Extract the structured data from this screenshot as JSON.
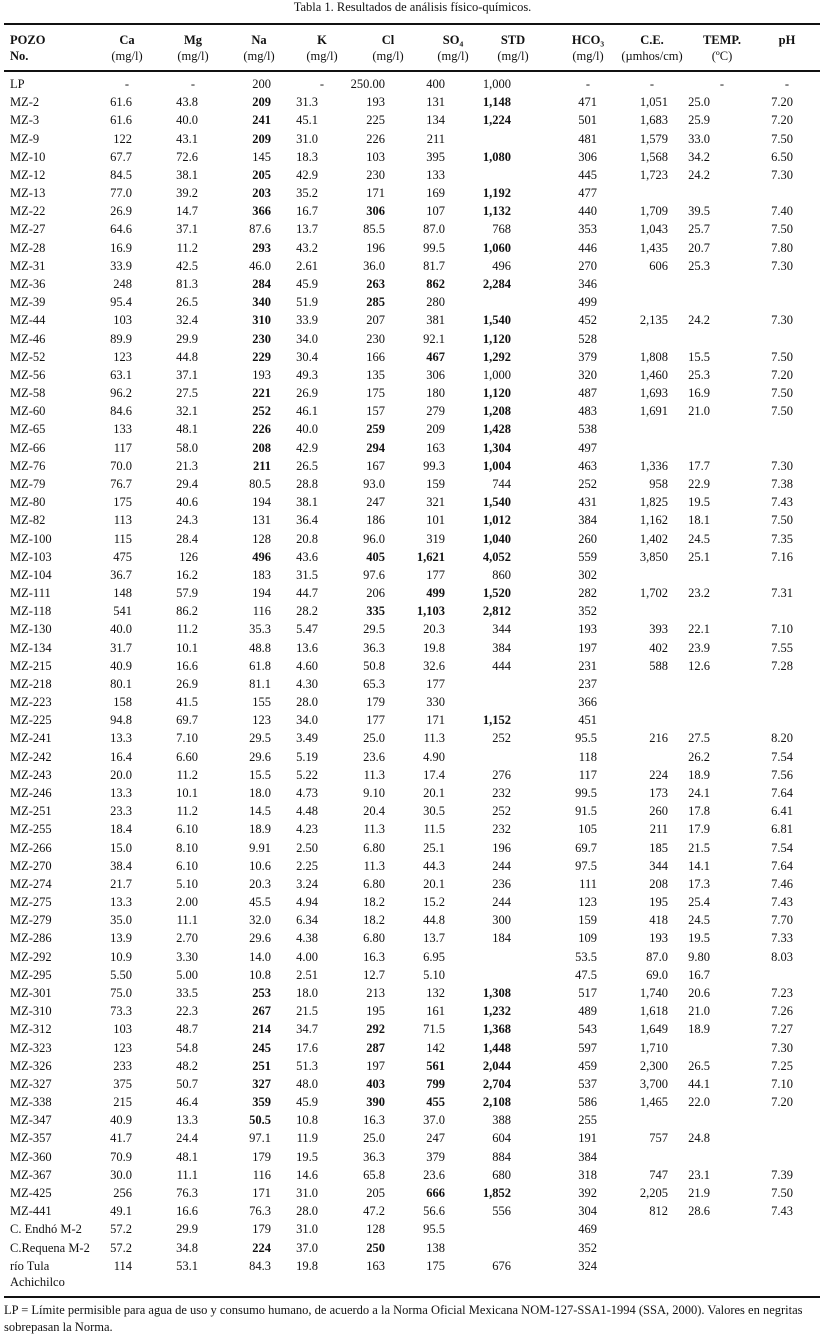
{
  "title": "Tabla 1. Resultados de análisis físico-químicos.",
  "header": {
    "pozo": [
      "POZO",
      "No."
    ],
    "columns": [
      {
        "key": "Ca",
        "label": "Ca",
        "unit": "(mg/l)"
      },
      {
        "key": "Mg",
        "label": "Mg",
        "unit": "(mg/l)"
      },
      {
        "key": "Na",
        "label": "Na",
        "unit": "(mg/l)"
      },
      {
        "key": "K",
        "label": "K",
        "unit": "(mg/l)"
      },
      {
        "key": "Cl",
        "label": "Cl",
        "unit": "(mg/l)"
      },
      {
        "key": "SO4",
        "label": "SO₄",
        "unit": "(mg/l)"
      },
      {
        "key": "STD",
        "label": "STD",
        "unit": "(mg/l)"
      },
      {
        "key": "HCO3",
        "label": "HCO₃",
        "unit": "(mg/l)"
      },
      {
        "key": "CE",
        "label": "C.E.",
        "unit": "(µmhos/cm)"
      },
      {
        "key": "TEMP",
        "label": "TEMP.",
        "unit": "(ºC)"
      },
      {
        "key": "pH",
        "label": "pH",
        "unit": ""
      }
    ]
  },
  "rows": [
    {
      "pozo": "LP",
      "values": [
        "-",
        "-",
        "200",
        "-",
        "250.00",
        "400",
        "1,000",
        "-",
        "-",
        "-",
        "-"
      ],
      "bold": []
    },
    {
      "pozo": "MZ-2",
      "values": [
        "61.6",
        "43.8",
        "209",
        "31.3",
        "193",
        "131",
        "1,148",
        "471",
        "1,051",
        "25.0",
        "7.20"
      ],
      "bold": [
        "Na",
        "STD"
      ]
    },
    {
      "pozo": "MZ-3",
      "values": [
        "61.6",
        "40.0",
        "241",
        "45.1",
        "225",
        "134",
        "1,224",
        "501",
        "1,683",
        "25.9",
        "7.20"
      ],
      "bold": [
        "Na",
        "STD"
      ]
    },
    {
      "pozo": "MZ-9",
      "values": [
        "122",
        "43.1",
        "209",
        "31.0",
        "226",
        "211",
        "",
        "481",
        "1,579",
        "33.0",
        "7.50"
      ],
      "bold": [
        "Na"
      ]
    },
    {
      "pozo": "MZ-10",
      "values": [
        "67.7",
        "72.6",
        "145",
        "18.3",
        "103",
        "395",
        "1,080",
        "306",
        "1,568",
        "34.2",
        "6.50"
      ],
      "bold": [
        "STD"
      ]
    },
    {
      "pozo": "MZ-12",
      "values": [
        "84.5",
        "38.1",
        "205",
        "42.9",
        "230",
        "133",
        "",
        "445",
        "1,723",
        "24.2",
        "7.30"
      ],
      "bold": [
        "Na"
      ]
    },
    {
      "pozo": "MZ-13",
      "values": [
        "77.0",
        "39.2",
        "203",
        "35.2",
        "171",
        "169",
        "1,192",
        "477",
        "",
        "",
        ""
      ],
      "bold": [
        "Na",
        "STD"
      ]
    },
    {
      "pozo": "MZ-22",
      "values": [
        "26.9",
        "14.7",
        "366",
        "16.7",
        "306",
        "107",
        "1,132",
        "440",
        "1,709",
        "39.5",
        "7.40"
      ],
      "bold": [
        "Na",
        "Cl",
        "STD"
      ]
    },
    {
      "pozo": "MZ-27",
      "values": [
        "64.6",
        "37.1",
        "87.6",
        "13.7",
        "85.5",
        "87.0",
        "768",
        "353",
        "1,043",
        "25.7",
        "7.50"
      ],
      "bold": []
    },
    {
      "pozo": "MZ-28",
      "values": [
        "16.9",
        "11.2",
        "293",
        "43.2",
        "196",
        "99.5",
        "1,060",
        "446",
        "1,435",
        "20.7",
        "7.80"
      ],
      "bold": [
        "Na",
        "STD"
      ]
    },
    {
      "pozo": "MZ-31",
      "values": [
        "33.9",
        "42.5",
        "46.0",
        "2.61",
        "36.0",
        "81.7",
        "496",
        "270",
        "606",
        "25.3",
        "7.30"
      ],
      "bold": []
    },
    {
      "pozo": "MZ-36",
      "values": [
        "248",
        "81.3",
        "284",
        "45.9",
        "263",
        "862",
        "2,284",
        "346",
        "",
        "",
        ""
      ],
      "bold": [
        "Na",
        "Cl",
        "SO4",
        "STD"
      ]
    },
    {
      "pozo": "MZ-39",
      "values": [
        "95.4",
        "26.5",
        "340",
        "51.9",
        "285",
        "280",
        "",
        "499",
        "",
        "",
        ""
      ],
      "bold": [
        "Na",
        "Cl"
      ]
    },
    {
      "pozo": "MZ-44",
      "values": [
        "103",
        "32.4",
        "310",
        "33.9",
        "207",
        "381",
        "1,540",
        "452",
        "2,135",
        "24.2",
        "7.30"
      ],
      "bold": [
        "Na",
        "STD"
      ]
    },
    {
      "pozo": "MZ-46",
      "values": [
        "89.9",
        "29.9",
        "230",
        "34.0",
        "230",
        "92.1",
        "1,120",
        "528",
        "",
        "",
        ""
      ],
      "bold": [
        "Na",
        "STD"
      ]
    },
    {
      "pozo": "MZ-52",
      "values": [
        "123",
        "44.8",
        "229",
        "30.4",
        "166",
        "467",
        "1,292",
        "379",
        "1,808",
        "15.5",
        "7.50"
      ],
      "bold": [
        "Na",
        "SO4",
        "STD"
      ]
    },
    {
      "pozo": "MZ-56",
      "values": [
        "63.1",
        "37.1",
        "193",
        "49.3",
        "135",
        "306",
        "1,000",
        "320",
        "1,460",
        "25.3",
        "7.20"
      ],
      "bold": []
    },
    {
      "pozo": "MZ-58",
      "values": [
        "96.2",
        "27.5",
        "221",
        "26.9",
        "175",
        "180",
        "1,120",
        "487",
        "1,693",
        "16.9",
        "7.50"
      ],
      "bold": [
        "Na",
        "STD"
      ]
    },
    {
      "pozo": "MZ-60",
      "values": [
        "84.6",
        "32.1",
        "252",
        "46.1",
        "157",
        "279",
        "1,208",
        "483",
        "1,691",
        "21.0",
        "7.50"
      ],
      "bold": [
        "Na",
        "STD"
      ]
    },
    {
      "pozo": "MZ-65",
      "values": [
        "133",
        "48.1",
        "226",
        "40.0",
        "259",
        "209",
        "1,428",
        "538",
        "",
        "",
        ""
      ],
      "bold": [
        "Na",
        "Cl",
        "STD"
      ]
    },
    {
      "pozo": "MZ-66",
      "values": [
        "117",
        "58.0",
        "208",
        "42.9",
        "294",
        "163",
        "1,304",
        "497",
        "",
        "",
        ""
      ],
      "bold": [
        "Na",
        "Cl",
        "STD"
      ]
    },
    {
      "pozo": "MZ-76",
      "values": [
        "70.0",
        "21.3",
        "211",
        "26.5",
        "167",
        "99.3",
        "1,004",
        "463",
        "1,336",
        "17.7",
        "7.30"
      ],
      "bold": [
        "Na",
        "STD"
      ]
    },
    {
      "pozo": "MZ-79",
      "values": [
        "76.7",
        "29.4",
        "80.5",
        "28.8",
        "93.0",
        "159",
        "744",
        "252",
        "958",
        "22.9",
        "7.38"
      ],
      "bold": []
    },
    {
      "pozo": "MZ-80",
      "values": [
        "175",
        "40.6",
        "194",
        "38.1",
        "247",
        "321",
        "1,540",
        "431",
        "1,825",
        "19.5",
        "7.43"
      ],
      "bold": [
        "STD"
      ]
    },
    {
      "pozo": "MZ-82",
      "values": [
        "113",
        "24.3",
        "131",
        "36.4",
        "186",
        "101",
        "1,012",
        "384",
        "1,162",
        "18.1",
        "7.50"
      ],
      "bold": [
        "STD"
      ]
    },
    {
      "pozo": "MZ-100",
      "values": [
        "115",
        "28.4",
        "128",
        "20.8",
        "96.0",
        "319",
        "1,040",
        "260",
        "1,402",
        "24.5",
        "7.35"
      ],
      "bold": [
        "STD"
      ]
    },
    {
      "pozo": "MZ-103",
      "values": [
        "475",
        "126",
        "496",
        "43.6",
        "405",
        "1,621",
        "4,052",
        "559",
        "3,850",
        "25.1",
        "7.16"
      ],
      "bold": [
        "Na",
        "Cl",
        "SO4",
        "STD"
      ]
    },
    {
      "pozo": "MZ-104",
      "values": [
        "36.7",
        "16.2",
        "183",
        "31.5",
        "97.6",
        "177",
        "860",
        "302",
        "",
        "",
        ""
      ],
      "bold": []
    },
    {
      "pozo": "MZ-111",
      "values": [
        "148",
        "57.9",
        "194",
        "44.7",
        "206",
        "499",
        "1,520",
        "282",
        "1,702",
        "23.2",
        "7.31"
      ],
      "bold": [
        "SO4",
        "STD"
      ]
    },
    {
      "pozo": "MZ-118",
      "values": [
        "541",
        "86.2",
        "116",
        "28.2",
        "335",
        "1,103",
        "2,812",
        "352",
        "",
        "",
        ""
      ],
      "bold": [
        "Cl",
        "SO4",
        "STD"
      ]
    },
    {
      "pozo": "MZ-130",
      "values": [
        "40.0",
        "11.2",
        "35.3",
        "5.47",
        "29.5",
        "20.3",
        "344",
        "193",
        "393",
        "22.1",
        "7.10"
      ],
      "bold": []
    },
    {
      "pozo": "MZ-134",
      "values": [
        "31.7",
        "10.1",
        "48.8",
        "13.6",
        "36.3",
        "19.8",
        "384",
        "197",
        "402",
        "23.9",
        "7.55"
      ],
      "bold": []
    },
    {
      "pozo": "MZ-215",
      "values": [
        "40.9",
        "16.6",
        "61.8",
        "4.60",
        "50.8",
        "32.6",
        "444",
        "231",
        "588",
        "12.6",
        "7.28"
      ],
      "bold": []
    },
    {
      "pozo": "MZ-218",
      "values": [
        "80.1",
        "26.9",
        "81.1",
        "4.30",
        "65.3",
        "177",
        "",
        "237",
        "",
        "",
        ""
      ],
      "bold": []
    },
    {
      "pozo": "MZ-223",
      "values": [
        "158",
        "41.5",
        "155",
        "28.0",
        "179",
        "330",
        "",
        "366",
        "",
        "",
        ""
      ],
      "bold": []
    },
    {
      "pozo": "MZ-225",
      "values": [
        "94.8",
        "69.7",
        "123",
        "34.0",
        "177",
        "171",
        "1,152",
        "451",
        "",
        "",
        ""
      ],
      "bold": [
        "STD"
      ]
    },
    {
      "pozo": "MZ-241",
      "values": [
        "13.3",
        "7.10",
        "29.5",
        "3.49",
        "25.0",
        "11.3",
        "252",
        "95.5",
        "216",
        "27.5",
        "8.20"
      ],
      "bold": []
    },
    {
      "pozo": "MZ-242",
      "values": [
        "16.4",
        "6.60",
        "29.6",
        "5.19",
        "23.6",
        "4.90",
        "",
        "118",
        "",
        "26.2",
        "7.54"
      ],
      "bold": []
    },
    {
      "pozo": "MZ-243",
      "values": [
        "20.0",
        "11.2",
        "15.5",
        "5.22",
        "11.3",
        "17.4",
        "276",
        "117",
        "224",
        "18.9",
        "7.56"
      ],
      "bold": []
    },
    {
      "pozo": "MZ-246",
      "values": [
        "13.3",
        "10.1",
        "18.0",
        "4.73",
        "9.10",
        "20.1",
        "232",
        "99.5",
        "173",
        "24.1",
        "7.64"
      ],
      "bold": []
    },
    {
      "pozo": "MZ-251",
      "values": [
        "23.3",
        "11.2",
        "14.5",
        "4.48",
        "20.4",
        "30.5",
        "252",
        "91.5",
        "260",
        "17.8",
        "6.41"
      ],
      "bold": []
    },
    {
      "pozo": "MZ-255",
      "values": [
        "18.4",
        "6.10",
        "18.9",
        "4.23",
        "11.3",
        "11.5",
        "232",
        "105",
        "211",
        "17.9",
        "6.81"
      ],
      "bold": []
    },
    {
      "pozo": "MZ-266",
      "values": [
        "15.0",
        "8.10",
        "9.91",
        "2.50",
        "6.80",
        "25.1",
        "196",
        "69.7",
        "185",
        "21.5",
        "7.54"
      ],
      "bold": []
    },
    {
      "pozo": "MZ-270",
      "values": [
        "38.4",
        "6.10",
        "10.6",
        "2.25",
        "11.3",
        "44.3",
        "244",
        "97.5",
        "344",
        "14.1",
        "7.64"
      ],
      "bold": []
    },
    {
      "pozo": "MZ-274",
      "values": [
        "21.7",
        "5.10",
        "20.3",
        "3.24",
        "6.80",
        "20.1",
        "236",
        "111",
        "208",
        "17.3",
        "7.46"
      ],
      "bold": []
    },
    {
      "pozo": "MZ-275",
      "values": [
        "13.3",
        "2.00",
        "45.5",
        "4.94",
        "18.2",
        "15.2",
        "244",
        "123",
        "195",
        "25.4",
        "7.43"
      ],
      "bold": []
    },
    {
      "pozo": "MZ-279",
      "values": [
        "35.0",
        "11.1",
        "32.0",
        "6.34",
        "18.2",
        "44.8",
        "300",
        "159",
        "418",
        "24.5",
        "7.70"
      ],
      "bold": []
    },
    {
      "pozo": "MZ-286",
      "values": [
        "13.9",
        "2.70",
        "29.6",
        "4.38",
        "6.80",
        "13.7",
        "184",
        "109",
        "193",
        "19.5",
        "7.33"
      ],
      "bold": []
    },
    {
      "pozo": "MZ-292",
      "values": [
        "10.9",
        "3.30",
        "14.0",
        "4.00",
        "16.3",
        "6.95",
        "",
        "53.5",
        "87.0",
        "9.80",
        "8.03"
      ],
      "bold": []
    },
    {
      "pozo": "MZ-295",
      "values": [
        "5.50",
        "5.00",
        "10.8",
        "2.51",
        "12.7",
        "5.10",
        "",
        "47.5",
        "69.0",
        "16.7",
        ""
      ],
      "bold": []
    },
    {
      "pozo": "MZ-301",
      "values": [
        "75.0",
        "33.5",
        "253",
        "18.0",
        "213",
        "132",
        "1,308",
        "517",
        "1,740",
        "20.6",
        "7.23"
      ],
      "bold": [
        "Na",
        "STD"
      ]
    },
    {
      "pozo": "MZ-310",
      "values": [
        "73.3",
        "22.3",
        "267",
        "21.5",
        "195",
        "161",
        "1,232",
        "489",
        "1,618",
        "21.0",
        "7.26"
      ],
      "bold": [
        "Na",
        "STD"
      ]
    },
    {
      "pozo": "MZ-312",
      "values": [
        "103",
        "48.7",
        "214",
        "34.7",
        "292",
        "71.5",
        "1,368",
        "543",
        "1,649",
        "18.9",
        "7.27"
      ],
      "bold": [
        "Na",
        "Cl",
        "STD"
      ]
    },
    {
      "pozo": "MZ-323",
      "values": [
        "123",
        "54.8",
        "245",
        "17.6",
        "287",
        "142",
        "1,448",
        "597",
        "1,710",
        "",
        "7.30"
      ],
      "bold": [
        "Na",
        "Cl",
        "STD"
      ]
    },
    {
      "pozo": "MZ-326",
      "values": [
        "233",
        "48.2",
        "251",
        "51.3",
        "197",
        "561",
        "2,044",
        "459",
        "2,300",
        "26.5",
        "7.25"
      ],
      "bold": [
        "Na",
        "SO4",
        "STD"
      ]
    },
    {
      "pozo": "MZ-327",
      "values": [
        "375",
        "50.7",
        "327",
        "48.0",
        "403",
        "799",
        "2,704",
        "537",
        "3,700",
        "44.1",
        "7.10"
      ],
      "bold": [
        "Na",
        "Cl",
        "SO4",
        "STD"
      ]
    },
    {
      "pozo": "MZ-338",
      "values": [
        "215",
        "46.4",
        "359",
        "45.9",
        "390",
        "455",
        "2,108",
        "586",
        "1,465",
        "22.0",
        "7.20"
      ],
      "bold": [
        "Na",
        "Cl",
        "SO4",
        "STD"
      ]
    },
    {
      "pozo": "MZ-347",
      "values": [
        "40.9",
        "13.3",
        "50.5",
        "10.8",
        "16.3",
        "37.0",
        "388",
        "255",
        "",
        "",
        ""
      ],
      "bold": [
        "Na"
      ]
    },
    {
      "pozo": "MZ-357",
      "values": [
        "41.7",
        "24.4",
        "97.1",
        "11.9",
        "25.0",
        "247",
        "604",
        "191",
        "757",
        "24.8",
        ""
      ],
      "bold": []
    },
    {
      "pozo": "MZ-360",
      "values": [
        "70.9",
        "48.1",
        "179",
        "19.5",
        "36.3",
        "379",
        "884",
        "384",
        "",
        "",
        ""
      ],
      "bold": []
    },
    {
      "pozo": "MZ-367",
      "values": [
        "30.0",
        "11.1",
        "116",
        "14.6",
        "65.8",
        "23.6",
        "680",
        "318",
        "747",
        "23.1",
        "7.39"
      ],
      "bold": []
    },
    {
      "pozo": "MZ-425",
      "values": [
        "256",
        "76.3",
        "171",
        "31.0",
        "205",
        "666",
        "1,852",
        "392",
        "2,205",
        "21.9",
        "7.50"
      ],
      "bold": [
        "SO4",
        "STD"
      ]
    },
    {
      "pozo": "MZ-441",
      "values": [
        "49.1",
        "16.6",
        "76.3",
        "28.0",
        "47.2",
        "56.6",
        "556",
        "304",
        "812",
        "28.6",
        "7.43"
      ],
      "bold": []
    },
    {
      "pozo": "C. Endhó M-2",
      "values": [
        "57.2",
        "29.9",
        "179",
        "31.0",
        "128",
        "95.5",
        "",
        "469",
        "",
        "",
        ""
      ],
      "bold": []
    },
    {
      "pozo": "C.Requena M-2",
      "values": [
        "57.2",
        "34.8",
        "224",
        "37.0",
        "250",
        "138",
        "",
        "352",
        "",
        "",
        ""
      ],
      "bold": [
        "Na",
        "Cl"
      ]
    },
    {
      "pozo": "río Tula Achichilco",
      "values": [
        "114",
        "53.1",
        "84.3",
        "19.8",
        "163",
        "175",
        "676",
        "324",
        "",
        "",
        ""
      ],
      "bold": []
    }
  ],
  "footnote": "LP = Límite permisible para agua de uso y consumo humano,  de acuerdo a la  Norma Oficial Mexicana NOM-127-SSA1-1994 (SSA, 2000). Valores en negritas sobrepasan la Norma."
}
